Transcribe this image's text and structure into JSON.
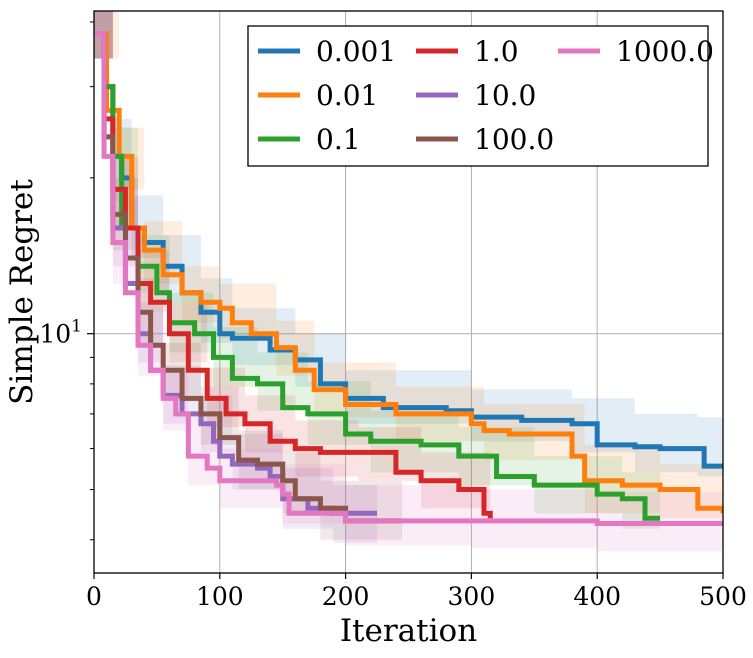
{
  "chart_data": {
    "type": "line",
    "title": "",
    "xlabel": "Iteration",
    "ylabel": "Simple Regret",
    "xlim": [
      0,
      500
    ],
    "ylim": [
      3.45,
      42
    ],
    "yscale": "log",
    "x_ticks": [
      0,
      100,
      200,
      300,
      400,
      500
    ],
    "x_tick_labels": [
      "0",
      "100",
      "200",
      "300",
      "400",
      "500"
    ],
    "y_major_ticks": [
      10
    ],
    "y_tick_labels": [
      "10^1"
    ],
    "y_tick_base": "10",
    "y_tick_exp": "1",
    "y_minor_ticks": [
      4,
      5,
      6,
      7,
      8,
      9,
      20,
      30,
      40
    ],
    "grid": true,
    "legend": {
      "placement": "top-right",
      "columns": 3
    },
    "series": [
      {
        "name": "0.001",
        "color": "#1f77b4",
        "points": [
          [
            0,
            38
          ],
          [
            8,
            30
          ],
          [
            15,
            22
          ],
          [
            22,
            20
          ],
          [
            30,
            16
          ],
          [
            40,
            15
          ],
          [
            55,
            13.5
          ],
          [
            70,
            12
          ],
          [
            85,
            11
          ],
          [
            100,
            10
          ],
          [
            110,
            9.8
          ],
          [
            140,
            9.3
          ],
          [
            160,
            8.9
          ],
          [
            180,
            8
          ],
          [
            200,
            7.5
          ],
          [
            230,
            7.2
          ],
          [
            280,
            7.1
          ],
          [
            300,
            6.9
          ],
          [
            340,
            6.8
          ],
          [
            380,
            6.7
          ],
          [
            400,
            6.1
          ],
          [
            430,
            6.05
          ],
          [
            450,
            6.0
          ],
          [
            480,
            6.0
          ],
          [
            485,
            5.55
          ],
          [
            500,
            5.55
          ]
        ],
        "band": [
          [
            0,
            42,
            34
          ],
          [
            15,
            26,
            18
          ],
          [
            30,
            18.5,
            14
          ],
          [
            55,
            15.5,
            11.5
          ],
          [
            85,
            12.8,
            9.6
          ],
          [
            110,
            11.2,
            8.7
          ],
          [
            160,
            10,
            7.9
          ],
          [
            200,
            8.5,
            6.7
          ],
          [
            300,
            7.8,
            6.2
          ],
          [
            380,
            7.5,
            5.9
          ],
          [
            430,
            7,
            5.4
          ],
          [
            480,
            6.9,
            5.3
          ],
          [
            500,
            6.5,
            5.0
          ]
        ]
      },
      {
        "name": "0.01",
        "color": "#ff7f0e",
        "points": [
          [
            0,
            38
          ],
          [
            10,
            27
          ],
          [
            20,
            22
          ],
          [
            30,
            16
          ],
          [
            40,
            14.5
          ],
          [
            55,
            13
          ],
          [
            70,
            12
          ],
          [
            85,
            11.5
          ],
          [
            100,
            11.2
          ],
          [
            110,
            10.5
          ],
          [
            125,
            10
          ],
          [
            145,
            9.4
          ],
          [
            160,
            8.5
          ],
          [
            175,
            7.8
          ],
          [
            200,
            7.3
          ],
          [
            240,
            7.0
          ],
          [
            300,
            6.7
          ],
          [
            310,
            6.5
          ],
          [
            330,
            6.4
          ],
          [
            380,
            5.8
          ],
          [
            390,
            5.2
          ],
          [
            420,
            5.1
          ],
          [
            450,
            5.0
          ],
          [
            480,
            4.6
          ],
          [
            500,
            4.5
          ]
        ],
        "band": [
          [
            0,
            42,
            34
          ],
          [
            20,
            25,
            19
          ],
          [
            40,
            16.5,
            12.5
          ],
          [
            70,
            13.5,
            10.5
          ],
          [
            100,
            12.5,
            9.8
          ],
          [
            145,
            10.6,
            8.3
          ],
          [
            175,
            8.8,
            6.9
          ],
          [
            240,
            7.9,
            6.2
          ],
          [
            310,
            7.3,
            5.7
          ],
          [
            390,
            6.1,
            4.5
          ],
          [
            450,
            5.6,
            4.4
          ],
          [
            500,
            5.0,
            4.0
          ]
        ]
      },
      {
        "name": "0.1",
        "color": "#2ca02c",
        "points": [
          [
            0,
            38
          ],
          [
            8,
            30
          ],
          [
            15,
            22
          ],
          [
            22,
            16
          ],
          [
            35,
            13.5
          ],
          [
            50,
            12
          ],
          [
            60,
            10.5
          ],
          [
            80,
            10
          ],
          [
            95,
            9
          ],
          [
            110,
            8.2
          ],
          [
            130,
            8
          ],
          [
            150,
            7.2
          ],
          [
            170,
            7
          ],
          [
            200,
            6.4
          ],
          [
            220,
            6.2
          ],
          [
            260,
            6.1
          ],
          [
            290,
            5.8
          ],
          [
            320,
            5.3
          ],
          [
            350,
            5.1
          ],
          [
            400,
            4.9
          ],
          [
            420,
            4.8
          ],
          [
            438,
            4.4
          ],
          [
            450,
            4.4
          ]
        ],
        "band": [
          [
            0,
            42,
            34
          ],
          [
            15,
            25,
            19
          ],
          [
            35,
            15.5,
            12
          ],
          [
            60,
            12,
            9.2
          ],
          [
            95,
            10.3,
            7.9
          ],
          [
            130,
            9.2,
            7.1
          ],
          [
            170,
            8.1,
            6.1
          ],
          [
            220,
            7.1,
            5.4
          ],
          [
            290,
            6.6,
            5.1
          ],
          [
            350,
            5.8,
            4.5
          ],
          [
            420,
            5.4,
            4.2
          ],
          [
            450,
            5.0,
            3.9
          ]
        ]
      },
      {
        "name": "1.0",
        "color": "#d62728",
        "points": [
          [
            0,
            38
          ],
          [
            8,
            26
          ],
          [
            15,
            19
          ],
          [
            25,
            16
          ],
          [
            35,
            12.5
          ],
          [
            45,
            11.5
          ],
          [
            60,
            10
          ],
          [
            75,
            8.5
          ],
          [
            90,
            7.5
          ],
          [
            105,
            7
          ],
          [
            120,
            6.7
          ],
          [
            140,
            6.2
          ],
          [
            160,
            6.0
          ],
          [
            180,
            5.9
          ],
          [
            210,
            5.9
          ],
          [
            240,
            5.4
          ],
          [
            260,
            5.2
          ],
          [
            290,
            5.0
          ],
          [
            310,
            4.5
          ],
          [
            315,
            4.4
          ]
        ],
        "band": [
          [
            0,
            42,
            34
          ],
          [
            15,
            22,
            16
          ],
          [
            35,
            14.5,
            11
          ],
          [
            60,
            11.5,
            8.8
          ],
          [
            90,
            8.6,
            6.6
          ],
          [
            120,
            7.6,
            5.9
          ],
          [
            160,
            6.8,
            5.3
          ],
          [
            210,
            6.6,
            5.2
          ],
          [
            260,
            5.9,
            4.6
          ],
          [
            315,
            5.0,
            3.9
          ]
        ]
      },
      {
        "name": "10.0",
        "color": "#9467bd",
        "points": [
          [
            0,
            38
          ],
          [
            8,
            24
          ],
          [
            15,
            16
          ],
          [
            25,
            12.5
          ],
          [
            35,
            10
          ],
          [
            45,
            8.5
          ],
          [
            55,
            7.6
          ],
          [
            70,
            7
          ],
          [
            85,
            6.7
          ],
          [
            95,
            6.2
          ],
          [
            100,
            5.8
          ],
          [
            110,
            5.6
          ],
          [
            130,
            5.5
          ],
          [
            140,
            5.3
          ],
          [
            150,
            4.8
          ],
          [
            170,
            4.6
          ],
          [
            190,
            4.5
          ],
          [
            215,
            4.5
          ],
          [
            225,
            4.5
          ]
        ],
        "band": [
          [
            0,
            42,
            34
          ],
          [
            15,
            19,
            13.5
          ],
          [
            35,
            11.5,
            8.8
          ],
          [
            55,
            8.7,
            6.7
          ],
          [
            85,
            7.6,
            5.9
          ],
          [
            110,
            6.4,
            5
          ],
          [
            150,
            5.5,
            4.2
          ],
          [
            190,
            5.1,
            3.95
          ],
          [
            225,
            5.0,
            3.9
          ]
        ]
      },
      {
        "name": "100.0",
        "color": "#8c564b",
        "points": [
          [
            0,
            38
          ],
          [
            8,
            24
          ],
          [
            15,
            17
          ],
          [
            25,
            14
          ],
          [
            35,
            11
          ],
          [
            45,
            9.5
          ],
          [
            55,
            8.5
          ],
          [
            70,
            7.5
          ],
          [
            85,
            7
          ],
          [
            100,
            6.3
          ],
          [
            115,
            5.7
          ],
          [
            130,
            5.6
          ],
          [
            150,
            5.2
          ],
          [
            160,
            4.8
          ],
          [
            180,
            4.6
          ],
          [
            200,
            4.35
          ],
          [
            230,
            4.35
          ],
          [
            245,
            4.35
          ]
        ],
        "band": [
          [
            0,
            42,
            34
          ],
          [
            15,
            20,
            14.5
          ],
          [
            35,
            12.8,
            9.5
          ],
          [
            55,
            9.6,
            7.4
          ],
          [
            85,
            7.9,
            6.1
          ],
          [
            115,
            6.5,
            5
          ],
          [
            150,
            5.9,
            4.5
          ],
          [
            180,
            5.2,
            4
          ],
          [
            245,
            4.9,
            3.9
          ]
        ]
      },
      {
        "name": "1000.0",
        "color": "#e377c2",
        "points": [
          [
            0,
            38
          ],
          [
            8,
            22
          ],
          [
            15,
            15
          ],
          [
            25,
            12
          ],
          [
            35,
            9.5
          ],
          [
            45,
            8.5
          ],
          [
            55,
            7.5
          ],
          [
            65,
            7
          ],
          [
            75,
            5.8
          ],
          [
            90,
            5.5
          ],
          [
            100,
            5.2
          ],
          [
            130,
            5.2
          ],
          [
            145,
            5.1
          ],
          [
            150,
            4.9
          ],
          [
            155,
            4.5
          ],
          [
            200,
            4.35
          ],
          [
            300,
            4.35
          ],
          [
            400,
            4.3
          ],
          [
            500,
            4.3
          ]
        ],
        "band": [
          [
            0,
            42,
            34
          ],
          [
            15,
            18,
            12.5
          ],
          [
            35,
            11,
            8.3
          ],
          [
            55,
            8.6,
            6.5
          ],
          [
            75,
            6.7,
            5.1
          ],
          [
            100,
            6,
            4.6
          ],
          [
            150,
            5.6,
            4.3
          ],
          [
            200,
            5.1,
            3.9
          ],
          [
            300,
            5.0,
            3.85
          ],
          [
            400,
            4.95,
            3.8
          ],
          [
            500,
            4.95,
            3.8
          ]
        ]
      }
    ]
  }
}
